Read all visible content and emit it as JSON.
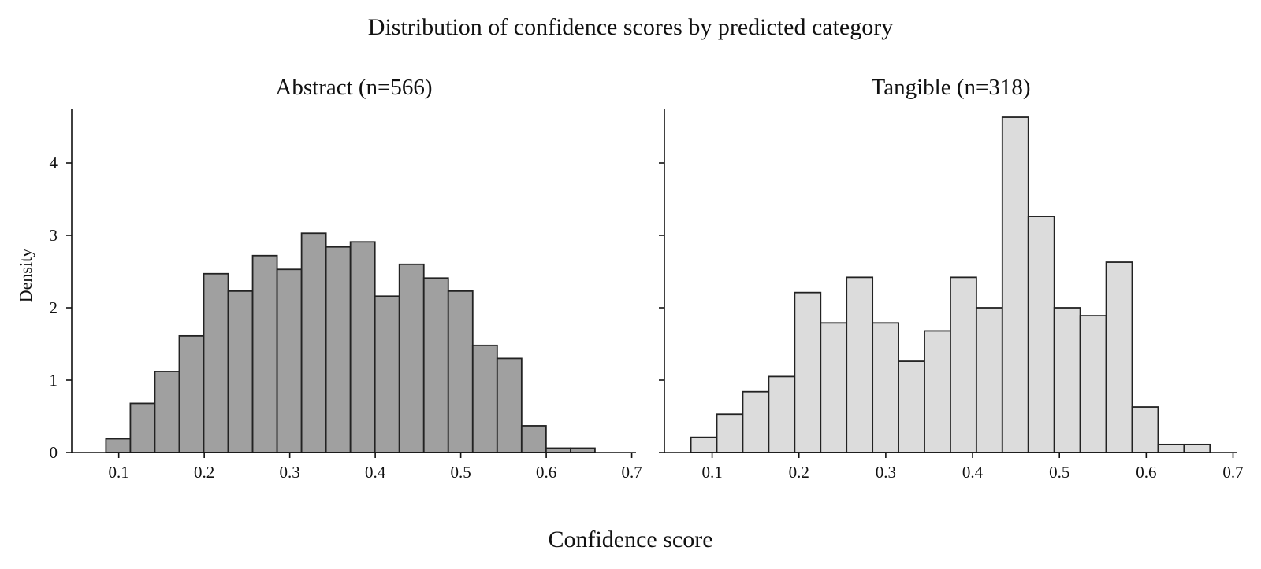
{
  "title": "Distribution of confidence scores by predicted category",
  "xlabel": "Confidence score",
  "ylabel": "Density",
  "chart_data": [
    {
      "type": "bar",
      "title": "Abstract (n=566)",
      "bar_color": "#a0a0a0",
      "bin_start": 0.085,
      "bin_width": 0.0286,
      "values": [
        0.19,
        0.68,
        1.12,
        1.61,
        2.47,
        2.23,
        2.72,
        2.53,
        3.03,
        2.84,
        2.91,
        2.16,
        2.6,
        2.41,
        2.23,
        1.48,
        1.3,
        0.37,
        0.06,
        0.06
      ],
      "xlim": [
        0.045,
        0.705
      ],
      "ylim": [
        0,
        4.75
      ],
      "xticks": [
        "0.1",
        "0.2",
        "0.3",
        "0.4",
        "0.5",
        "0.6",
        "0.7"
      ],
      "yticks": [
        "0",
        "1",
        "2",
        "3",
        "4"
      ]
    },
    {
      "type": "bar",
      "title": "Tangible (n=318)",
      "bar_color": "#dcdcdc",
      "bin_start": 0.0755,
      "bin_width": 0.0299,
      "values": [
        0.21,
        0.53,
        0.84,
        1.05,
        2.21,
        1.79,
        2.42,
        1.79,
        1.26,
        1.68,
        2.42,
        2.0,
        4.63,
        3.26,
        2.0,
        1.89,
        2.63,
        0.63,
        0.11,
        0.11
      ],
      "xlim": [
        0.045,
        0.705
      ],
      "ylim": [
        0,
        4.75
      ],
      "xticks": [
        "0.1",
        "0.2",
        "0.3",
        "0.4",
        "0.5",
        "0.6",
        "0.7"
      ],
      "yticks": []
    }
  ]
}
